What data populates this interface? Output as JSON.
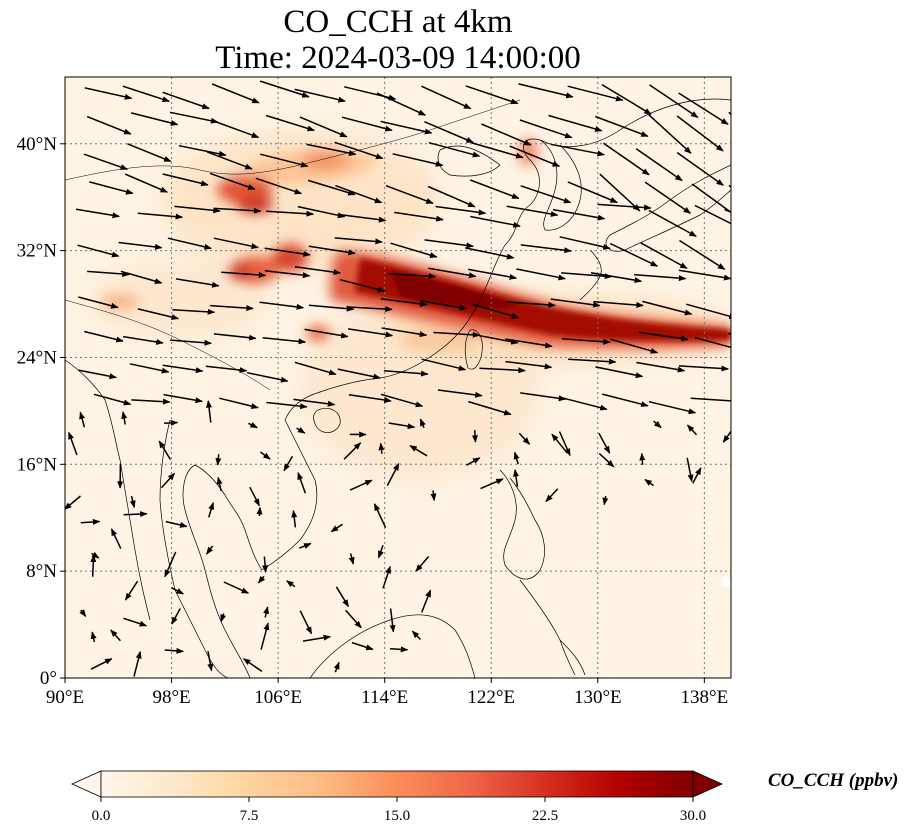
{
  "title": {
    "line1": "CO_CCH at 4km",
    "line2": "Time: 2024-03-09 14:00:00"
  },
  "map": {
    "lon_range": [
      90,
      140
    ],
    "lat_range": [
      0,
      45
    ],
    "lon_ticks": [
      {
        "value": 90,
        "label": "90°E"
      },
      {
        "value": 98,
        "label": "98°E"
      },
      {
        "value": 106,
        "label": "106°E"
      },
      {
        "value": 114,
        "label": "114°E"
      },
      {
        "value": 122,
        "label": "122°E"
      },
      {
        "value": 130,
        "label": "130°E"
      },
      {
        "value": 138,
        "label": "138°E"
      }
    ],
    "lat_ticks": [
      {
        "value": 0,
        "label": "0°"
      },
      {
        "value": 8,
        "label": "8°N"
      },
      {
        "value": 16,
        "label": "16°N"
      },
      {
        "value": 24,
        "label": "24°N"
      },
      {
        "value": 32,
        "label": "32°N"
      },
      {
        "value": 40,
        "label": "40°N"
      }
    ],
    "gridlines": "dotted",
    "field_colormap": "OrRd",
    "wind_vectors": "black arrows"
  },
  "colorbar": {
    "label": "CO_CCH (ppbv)",
    "min": 0.0,
    "max": 30.0,
    "extend": "both",
    "ticks": [
      {
        "value": 0.0,
        "label": "0.0"
      },
      {
        "value": 7.5,
        "label": "7.5"
      },
      {
        "value": 15.0,
        "label": "15.0"
      },
      {
        "value": 22.5,
        "label": "22.5"
      },
      {
        "value": 30.0,
        "label": "30.0"
      }
    ],
    "colors": [
      "#fff7ec",
      "#fee8c8",
      "#fdd49e",
      "#fdbb84",
      "#fc8d59",
      "#ef6548",
      "#d7301f",
      "#b30000",
      "#7f0000"
    ]
  }
}
